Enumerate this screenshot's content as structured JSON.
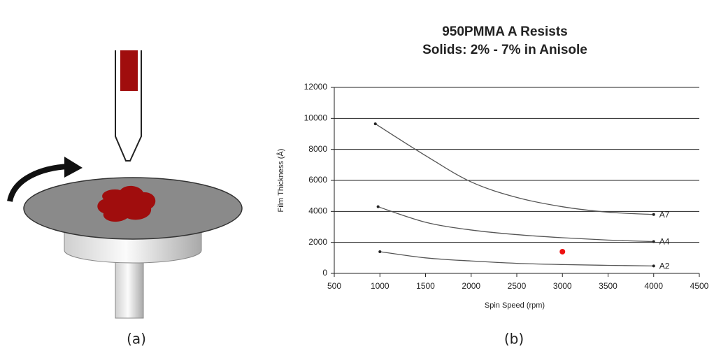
{
  "panel_labels": [
    "(a)",
    "(b)"
  ],
  "chart_data": {
    "type": "line",
    "title": "950PMMA A Resists",
    "subtitle": "Solids: 2% - 7% in Anisole",
    "x_label": "Spin Speed (rpm)",
    "y_label": "Film Thickness (Å)",
    "xlim": [
      500,
      4500
    ],
    "xticks": [
      500,
      1000,
      1500,
      2000,
      2500,
      3000,
      3500,
      4000,
      4500
    ],
    "ylim": [
      0,
      12000
    ],
    "yticks": [
      0,
      2000,
      4000,
      6000,
      8000,
      10000,
      12000
    ],
    "grid": true,
    "series": [
      {
        "name": "A7",
        "color": "#555555",
        "x": [
          950,
          1500,
          2000,
          2500,
          3000,
          3500,
          4000
        ],
        "values": [
          9650,
          7600,
          5900,
          4900,
          4300,
          3950,
          3800
        ]
      },
      {
        "name": "A4",
        "color": "#555555",
        "x": [
          980,
          1500,
          2000,
          2500,
          3000,
          3500,
          4000
        ],
        "values": [
          4300,
          3300,
          2800,
          2500,
          2300,
          2150,
          2050
        ]
      },
      {
        "name": "A2",
        "color": "#555555",
        "x": [
          1000,
          1500,
          2000,
          2500,
          3000,
          3500,
          4000
        ],
        "values": [
          1400,
          1000,
          800,
          650,
          570,
          520,
          480
        ]
      }
    ],
    "highlight": {
      "x": 3000,
      "y": 1400,
      "color": "#ee1111"
    }
  }
}
